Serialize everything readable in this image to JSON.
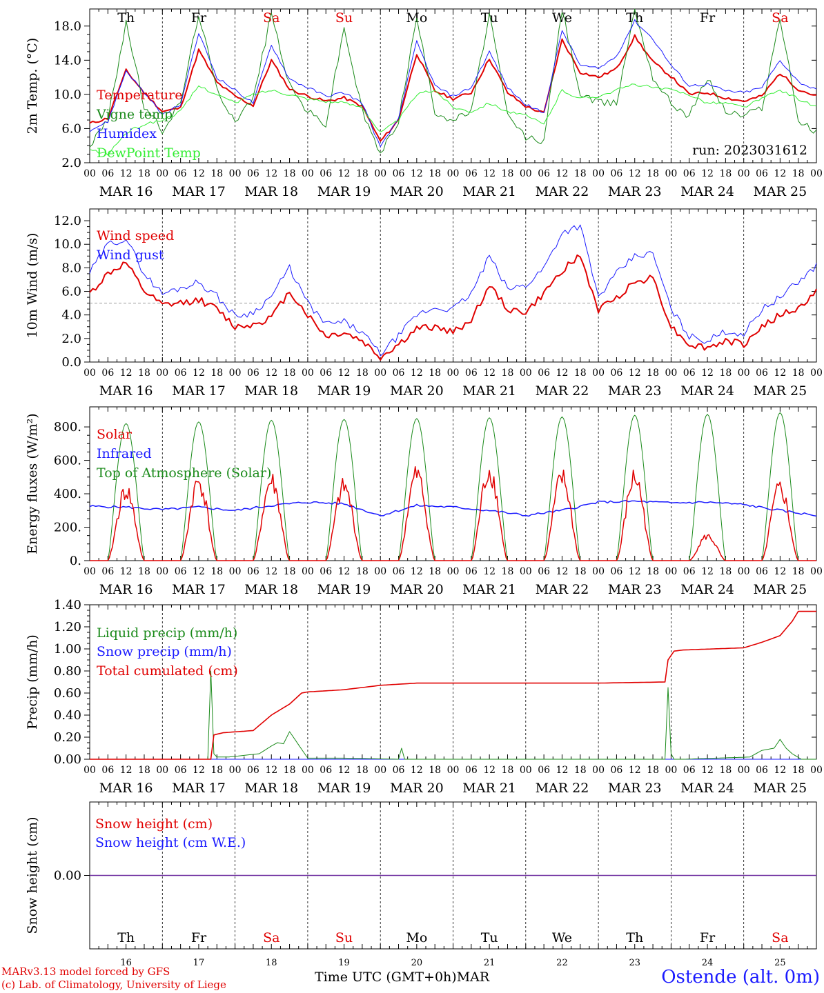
{
  "chart_data": [
    {
      "type": "line",
      "ylabel": "2m Temp. (°C)",
      "ylim": [
        2,
        20
      ],
      "yticks": [
        "2.0",
        "6.0",
        "10.0",
        "14.0",
        "18.0"
      ],
      "ytick_values": [
        2,
        6,
        10,
        14,
        18
      ],
      "run_label": "run: 2023031612",
      "hour_ticks": [
        "00",
        "06",
        "12",
        "18"
      ],
      "date_labels": [
        "MAR 16",
        "MAR 17",
        "MAR 18",
        "MAR 19",
        "MAR 20",
        "MAR 21",
        "MAR 22",
        "MAR 23",
        "MAR 24",
        "MAR 25"
      ],
      "day_names": [
        "Th",
        "Fr",
        "Sa",
        "Su",
        "Mo",
        "Tu",
        "We",
        "Th",
        "Fr",
        "Sa"
      ],
      "day_name_colors": [
        "#000000",
        "#000000",
        "#e00000",
        "#e00000",
        "#000000",
        "#000000",
        "#000000",
        "#000000",
        "#000000",
        "#e00000"
      ],
      "x_hours": [
        0,
        6,
        12,
        18,
        24,
        30,
        36,
        42,
        48,
        54,
        60,
        66,
        72,
        78,
        84,
        90,
        96,
        102,
        108,
        114,
        120,
        126,
        132,
        138,
        144,
        150,
        156,
        162,
        168,
        174,
        180,
        186,
        192,
        198,
        204,
        210,
        216,
        222,
        228,
        234,
        240
      ],
      "series": [
        {
          "name": "Temperature",
          "color": "#e00000",
          "values": [
            6.6,
            7.2,
            12.8,
            10.2,
            8.0,
            8.4,
            15.2,
            11.4,
            9.8,
            8.7,
            14.0,
            10.6,
            9.8,
            9.2,
            9.6,
            8.6,
            4.5,
            7.0,
            14.8,
            10.4,
            9.5,
            10.2,
            14.2,
            10.2,
            8.6,
            7.8,
            16.4,
            12.6,
            12.0,
            13.0,
            16.8,
            13.8,
            12.1,
            10.0,
            10.2,
            9.6,
            9.2,
            9.8,
            12.5,
            10.6,
            9.8
          ]
        },
        {
          "name": "Vigne temp",
          "color": "#1a8a1a",
          "values": [
            4.0,
            7.0,
            18.5,
            8.5,
            5.8,
            9.0,
            19.5,
            10.5,
            7.0,
            9.5,
            19.5,
            11.0,
            8.0,
            6.5,
            17.8,
            8.0,
            3.0,
            7.0,
            19.0,
            8.0,
            7.0,
            8.0,
            19.5,
            7.5,
            5.0,
            4.5,
            20.0,
            10.0,
            9.0,
            9.0,
            20.0,
            12.0,
            9.0,
            7.5,
            12.0,
            8.0,
            7.5,
            8.5,
            19.0,
            7.0,
            5.5
          ]
        },
        {
          "name": "Humidex",
          "color": "#1a1aff",
          "values": [
            5.8,
            6.8,
            12.8,
            10.2,
            7.6,
            8.8,
            17.2,
            12.0,
            10.5,
            9.0,
            15.8,
            11.8,
            10.8,
            9.8,
            10.2,
            9.0,
            3.8,
            7.2,
            16.2,
            11.0,
            9.8,
            10.8,
            15.0,
            10.8,
            8.8,
            7.8,
            17.5,
            13.4,
            13.0,
            14.5,
            18.6,
            16.5,
            13.4,
            11.0,
            11.2,
            10.4,
            10.2,
            10.8,
            14.0,
            11.5,
            10.5
          ]
        },
        {
          "name": "DewPoint Temp",
          "color": "#33ee33",
          "values": [
            3.5,
            3.0,
            5.5,
            6.5,
            7.0,
            8.0,
            11.0,
            10.0,
            9.0,
            10.0,
            10.5,
            10.0,
            9.5,
            9.2,
            9.0,
            8.5,
            5.5,
            7.0,
            10.0,
            10.5,
            8.5,
            8.0,
            9.0,
            8.0,
            7.5,
            6.5,
            10.5,
            9.5,
            9.8,
            10.5,
            11.2,
            10.8,
            10.5,
            10.0,
            9.0,
            9.0,
            8.5,
            9.5,
            10.5,
            9.5,
            8.5
          ]
        }
      ]
    },
    {
      "type": "line",
      "ylabel": "10m Wind (m/s)",
      "ylim": [
        0,
        13
      ],
      "yticks": [
        "0.0",
        "2.0",
        "4.0",
        "6.0",
        "8.0",
        "10.0",
        "12.0"
      ],
      "ytick_values": [
        0,
        2,
        4,
        6,
        8,
        10,
        12
      ],
      "reference_line": 5,
      "hour_ticks": [
        "00",
        "06",
        "12",
        "18"
      ],
      "date_labels": [
        "MAR 16",
        "MAR 17",
        "MAR 18",
        "MAR 19",
        "MAR 20",
        "MAR 21",
        "MAR 22",
        "MAR 23",
        "MAR 24",
        "MAR 25"
      ],
      "x_hours": [
        0,
        6,
        12,
        18,
        24,
        30,
        36,
        42,
        48,
        54,
        60,
        66,
        72,
        78,
        84,
        90,
        96,
        102,
        108,
        114,
        120,
        126,
        132,
        138,
        144,
        150,
        156,
        162,
        168,
        174,
        180,
        186,
        192,
        198,
        204,
        210,
        216,
        222,
        228,
        234,
        240
      ],
      "series": [
        {
          "name": "Wind speed",
          "color": "#e00000",
          "values": [
            5.8,
            7.5,
            8.4,
            6.0,
            4.8,
            5.0,
            5.3,
            4.5,
            3.0,
            3.2,
            3.8,
            6.0,
            4.0,
            2.2,
            2.5,
            1.8,
            0.4,
            1.5,
            2.8,
            3.0,
            2.5,
            3.6,
            6.5,
            4.5,
            4.2,
            5.8,
            7.8,
            9.0,
            4.4,
            5.5,
            6.8,
            7.2,
            3.0,
            1.5,
            1.2,
            1.8,
            1.5,
            3.0,
            4.0,
            4.5,
            6.0
          ]
        },
        {
          "name": "Wind gust",
          "color": "#1a1aff",
          "values": [
            7.6,
            10.0,
            10.5,
            7.5,
            5.8,
            6.3,
            6.8,
            5.6,
            3.9,
            4.2,
            5.6,
            8.0,
            5.0,
            3.2,
            3.4,
            2.5,
            0.7,
            2.2,
            4.0,
            4.6,
            4.5,
            5.8,
            9.0,
            6.2,
            6.5,
            8.0,
            11.0,
            11.6,
            5.5,
            7.5,
            9.0,
            9.2,
            4.5,
            2.2,
            1.8,
            2.6,
            2.4,
            4.5,
            5.5,
            6.8,
            8.2
          ]
        }
      ]
    },
    {
      "type": "line",
      "ylabel": "Energy fluxes (W/m²)",
      "ylim": [
        0,
        920
      ],
      "yticks": [
        "0.",
        "200.",
        "400.",
        "600.",
        "800."
      ],
      "ytick_values": [
        0,
        200,
        400,
        600,
        800
      ],
      "hour_ticks": [
        "00",
        "06",
        "12",
        "18"
      ],
      "date_labels": [
        "MAR 16",
        "MAR 17",
        "MAR 18",
        "MAR 19",
        "MAR 20",
        "MAR 21",
        "MAR 22",
        "MAR 23",
        "MAR 24",
        "MAR 25"
      ],
      "x_hours_infrared": [
        0,
        12,
        24,
        36,
        48,
        60,
        72,
        84,
        96,
        108,
        120,
        132,
        144,
        156,
        168,
        180,
        192,
        204,
        216,
        228,
        240
      ],
      "series": [
        {
          "name": "Solar",
          "color": "#e00000",
          "daily_peak": [
            475,
            535,
            540,
            500,
            585,
            610,
            560,
            565,
            165,
            490
          ]
        },
        {
          "name": "Infrared",
          "color": "#1a1aff",
          "values": [
            325,
            320,
            305,
            320,
            300,
            330,
            350,
            340,
            270,
            330,
            320,
            300,
            270,
            300,
            350,
            355,
            345,
            350,
            335,
            300,
            270
          ]
        },
        {
          "name": "Top of Atmosphere (Solar)",
          "color": "#1a8a1a",
          "daily_peak": [
            820,
            830,
            840,
            845,
            850,
            855,
            860,
            870,
            875,
            885
          ]
        }
      ]
    },
    {
      "type": "line",
      "ylabel": "Precip (mm/h)",
      "ylim": [
        0,
        1.4
      ],
      "yticks": [
        "0.00",
        "0.20",
        "0.40",
        "0.60",
        "0.80",
        "1.00",
        "1.20",
        "1.40"
      ],
      "ytick_values": [
        0,
        0.2,
        0.4,
        0.6,
        0.8,
        1.0,
        1.2,
        1.4
      ],
      "hour_ticks": [
        "00",
        "06",
        "12",
        "18"
      ],
      "date_labels": [
        "MAR 16",
        "MAR 17",
        "MAR 18",
        "MAR 19",
        "MAR 20",
        "MAR 21",
        "MAR 22",
        "MAR 23",
        "MAR 24",
        "MAR 25"
      ],
      "series": [
        {
          "name": "Liquid precip (mm/h)",
          "color": "#1a8a1a",
          "x_hours": [
            0,
            39,
            40,
            41,
            42,
            46,
            56,
            60,
            62,
            64,
            66,
            72,
            84,
            102,
            103,
            104,
            120,
            190,
            191,
            192,
            193,
            196,
            218,
            222,
            226,
            228,
            230,
            232,
            235,
            240
          ],
          "values": [
            0,
            0,
            0.8,
            0.05,
            0.02,
            0.02,
            0.05,
            0.12,
            0.15,
            0.14,
            0.25,
            0.01,
            0.01,
            0,
            0.1,
            0,
            0,
            0,
            0.65,
            0.05,
            0,
            0,
            0.02,
            0.08,
            0.1,
            0.18,
            0.1,
            0.05,
            0,
            0
          ]
        },
        {
          "name": "Snow precip (mm/h)",
          "color": "#1a1aff",
          "x_hours": [
            0,
            240
          ],
          "values": [
            0,
            0
          ]
        },
        {
          "name": "Total cumulated (cm)",
          "color": "#e00000",
          "x_hours": [
            0,
            40,
            41,
            44,
            54,
            60,
            66,
            70,
            72,
            84,
            96,
            108,
            132,
            168,
            190,
            191,
            193,
            196,
            216,
            222,
            228,
            232,
            234,
            240
          ],
          "values": [
            0,
            0,
            0.22,
            0.24,
            0.26,
            0.4,
            0.5,
            0.6,
            0.61,
            0.63,
            0.67,
            0.69,
            0.69,
            0.69,
            0.7,
            0.9,
            0.98,
            0.99,
            1.01,
            1.06,
            1.12,
            1.25,
            1.34,
            1.34
          ]
        }
      ]
    },
    {
      "type": "line",
      "ylabel": "Snow height (cm)",
      "ylim": [
        -1,
        1
      ],
      "yticks": [
        "0.00"
      ],
      "ytick_values": [
        0
      ],
      "day_names": [
        "Th",
        "Fr",
        "Sa",
        "Su",
        "Mo",
        "Tu",
        "We",
        "Th",
        "Fr",
        "Sa"
      ],
      "day_name_colors": [
        "#000000",
        "#000000",
        "#e00000",
        "#e00000",
        "#000000",
        "#000000",
        "#000000",
        "#000000",
        "#000000",
        "#e00000"
      ],
      "day_numbers": [
        "16",
        "17",
        "18",
        "19",
        "20",
        "21",
        "22",
        "23",
        "24",
        "25"
      ],
      "xlabel": "Time UTC (GMT+0h)",
      "month_label": "MAR",
      "series": [
        {
          "name": "Snow height (cm)",
          "color": "#e00000",
          "values": [
            0,
            0
          ]
        },
        {
          "name": "Snow height (cm W.E.)",
          "color": "#1a1aff",
          "values": [
            0,
            0
          ]
        }
      ]
    }
  ],
  "footer": {
    "credit_line1": "MARv3.13 model forced by GFS",
    "credit_line2": "(c) Lab. of Climatology, University of Liege",
    "station": "Ostende (alt. 0m)",
    "xlabel": "Time UTC (GMT+0h)",
    "month_label": "MAR"
  }
}
